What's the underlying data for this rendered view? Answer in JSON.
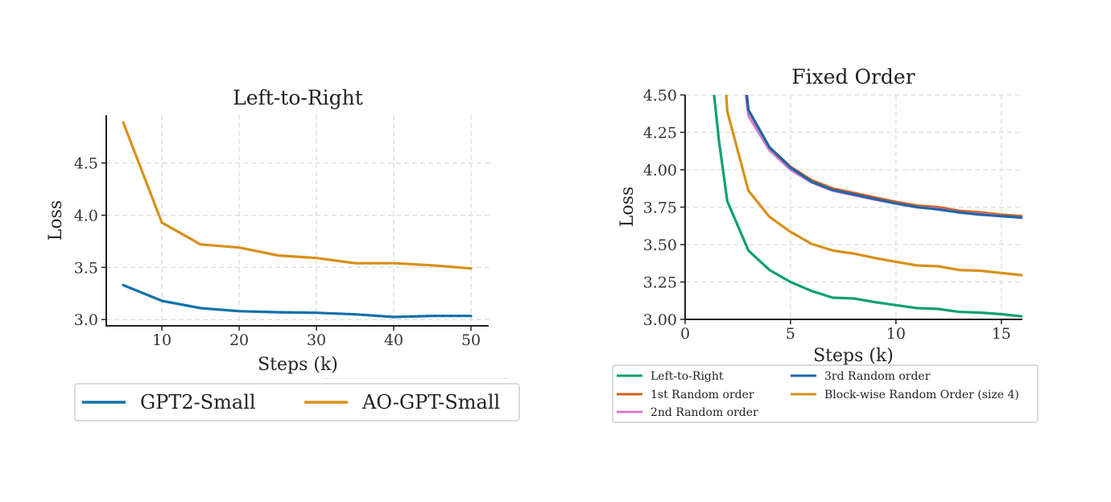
{
  "chart_data": [
    {
      "type": "line",
      "title": "Left-to-Right",
      "xlabel": "Steps (k)",
      "ylabel": "Loss",
      "xlim": [
        2.6,
        52.6
      ],
      "ylim": [
        2.94,
        4.96
      ],
      "xticks": [
        10,
        20,
        30,
        40,
        50
      ],
      "yticks": [
        3.0,
        3.5,
        4.0,
        4.5
      ],
      "ytick_labels": [
        "3.0",
        "3.5",
        "4.0",
        "4.5"
      ],
      "grid": true,
      "legend_position": "bottom",
      "series": [
        {
          "name": "GPT2-Small",
          "color": "#1170aa",
          "x": [
            5,
            10,
            15,
            20,
            25,
            30,
            35,
            40,
            45,
            50
          ],
          "y": [
            3.33,
            3.18,
            3.11,
            3.08,
            3.07,
            3.065,
            3.05,
            3.025,
            3.035,
            3.035
          ]
        },
        {
          "name": "AO-GPT-Small",
          "color": "#d89018",
          "x": [
            5,
            10,
            15,
            20,
            25,
            30,
            35,
            40,
            45,
            50
          ],
          "y": [
            4.89,
            3.93,
            3.72,
            3.69,
            3.615,
            3.59,
            3.54,
            3.54,
            3.52,
            3.49
          ]
        }
      ]
    },
    {
      "type": "line",
      "title": "Fixed Order",
      "xlabel": "Steps (k)",
      "ylabel": "Loss",
      "xlim": [
        0,
        16
      ],
      "ylim": [
        3.0,
        4.5
      ],
      "xticks": [
        0,
        5,
        10,
        15
      ],
      "yticks": [
        3.0,
        3.25,
        3.5,
        3.75,
        4.0,
        4.25,
        4.5
      ],
      "ytick_labels": [
        "3.00",
        "3.25",
        "3.50",
        "3.75",
        "4.00",
        "4.25",
        "4.50"
      ],
      "grid": true,
      "legend_position": "bottom",
      "series": [
        {
          "name": "Left-to-Right",
          "color": "#0fa070",
          "x": [
            1.3,
            1.6,
            2,
            3,
            4,
            5,
            6,
            7,
            8,
            9,
            10,
            11,
            12,
            13,
            14,
            15,
            16
          ],
          "y": [
            4.6,
            4.2,
            3.79,
            3.46,
            3.33,
            3.25,
            3.19,
            3.145,
            3.14,
            3.115,
            3.095,
            3.075,
            3.07,
            3.05,
            3.045,
            3.035,
            3.02
          ]
        },
        {
          "name": "1st Random order",
          "color": "#d2621d",
          "x": [
            2.85,
            3,
            4,
            5,
            6,
            7,
            8,
            9,
            10,
            11,
            12,
            13,
            14,
            15,
            16
          ],
          "y": [
            4.6,
            4.4,
            4.15,
            4.02,
            3.93,
            3.875,
            3.845,
            3.815,
            3.785,
            3.76,
            3.75,
            3.725,
            3.715,
            3.7,
            3.69
          ]
        },
        {
          "name": "2nd Random order",
          "color": "#d47cc8",
          "x": [
            2.8,
            3,
            4,
            5,
            6,
            7,
            8,
            9,
            10,
            11,
            12,
            13,
            14,
            15,
            16
          ],
          "y": [
            4.6,
            4.36,
            4.13,
            4.0,
            3.915,
            3.86,
            3.83,
            3.8,
            3.775,
            3.75,
            3.74,
            3.715,
            3.705,
            3.69,
            3.68
          ]
        },
        {
          "name": "3rd Random order",
          "color": "#1f65a8",
          "x": [
            2.85,
            3,
            4,
            5,
            6,
            7,
            8,
            9,
            10,
            11,
            12,
            13,
            14,
            15,
            16
          ],
          "y": [
            4.6,
            4.4,
            4.15,
            4.015,
            3.92,
            3.865,
            3.835,
            3.805,
            3.775,
            3.75,
            3.735,
            3.715,
            3.7,
            3.69,
            3.68
          ]
        },
        {
          "name": "Block-wise Random Order (size 4)",
          "color": "#d89018",
          "x": [
            1.9,
            2,
            3,
            4,
            5,
            6,
            7,
            8,
            9,
            10,
            11,
            12,
            13,
            14,
            15,
            16
          ],
          "y": [
            4.6,
            4.39,
            3.86,
            3.685,
            3.585,
            3.505,
            3.46,
            3.44,
            3.41,
            3.385,
            3.36,
            3.355,
            3.33,
            3.325,
            3.31,
            3.295
          ]
        }
      ]
    }
  ]
}
